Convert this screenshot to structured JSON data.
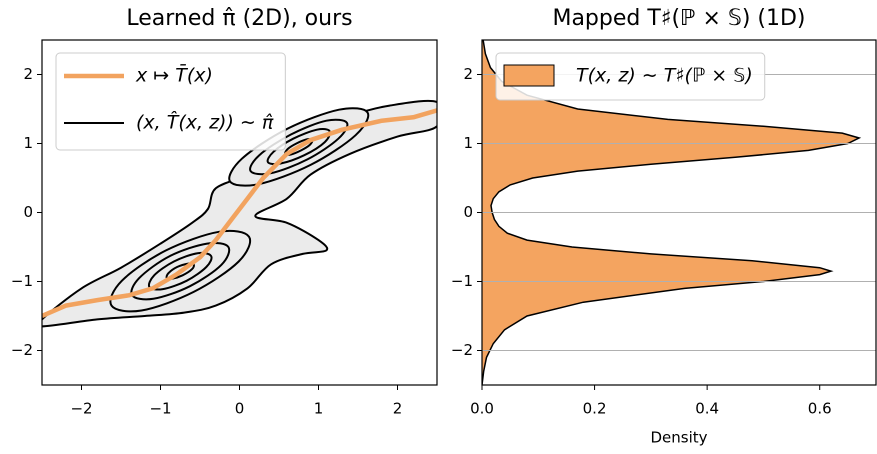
{
  "chart_data": [
    {
      "type": "contour",
      "title": "Learned π̂ (2D), ours",
      "xlim": [
        -2.5,
        2.5
      ],
      "ylim": [
        -2.5,
        2.5
      ],
      "xticks": [
        {
          "value": -2,
          "label": "−2"
        },
        {
          "value": -1,
          "label": "−1"
        },
        0,
        1,
        2
      ],
      "yticks": [
        {
          "value": -2,
          "label": "−2"
        },
        {
          "value": -1,
          "label": "−1"
        },
        0,
        1,
        2
      ],
      "grid": false,
      "legend": "upper left",
      "series": [
        {
          "name": "x ↦ T̄(x)",
          "color": "#f2a35f",
          "x": [
            -2.5,
            -2.2,
            -1.8,
            -1.4,
            -1.1,
            -0.8,
            -0.5,
            -0.3,
            -0.1,
            0.1,
            0.3,
            0.6,
            0.9,
            1.3,
            1.8,
            2.2,
            2.5
          ],
          "y": [
            -1.5,
            -1.35,
            -1.27,
            -1.2,
            -1.1,
            -0.9,
            -0.65,
            -0.4,
            -0.1,
            0.2,
            0.5,
            0.85,
            1.05,
            1.2,
            1.33,
            1.38,
            1.48
          ]
        },
        {
          "name": "(x, T̂(x, z)) ∼ π̂",
          "color": "#000000",
          "fill": "#ebebeb",
          "levels": [
            {
              "x": [
                -2.5,
                -2.0,
                -1.5,
                -1.0,
                -0.6,
                -0.4,
                -0.3,
                0.1,
                0.4,
                0.9,
                1.4,
                1.9,
                2.5,
                2.5,
                2.0,
                1.4,
                0.9,
                0.6,
                0.2,
                0.6,
                1.0,
                1.1,
                0.8,
                0.4,
                0.1,
                -0.3,
                -0.7,
                -1.2,
                -1.8,
                -2.5
              ],
              "y": [
                -1.55,
                -1.1,
                -0.8,
                -0.45,
                -0.15,
                0.05,
                0.35,
                0.55,
                0.8,
                1.15,
                1.4,
                1.55,
                1.6,
                1.25,
                1.1,
                0.85,
                0.55,
                0.2,
                -0.05,
                -0.15,
                -0.4,
                -0.55,
                -0.6,
                -0.75,
                -1.1,
                -1.35,
                -1.45,
                -1.5,
                -1.55,
                -1.65
              ]
            },
            {
              "x": [
                0.12,
                -0.26,
                -0.93,
                -1.49,
                -1.62,
                -1.24,
                -0.58,
                -0.01
              ],
              "y": [
                -0.35,
                -0.28,
                -0.55,
                -0.99,
                -1.35,
                -1.42,
                -1.15,
                -0.71
              ]
            },
            {
              "x": [
                -0.14,
                -0.41,
                -0.88,
                -1.27,
                -1.36,
                -1.09,
                -0.63,
                -0.23
              ],
              "y": [
                -0.5,
                -0.45,
                -0.63,
                -0.95,
                -1.2,
                -1.25,
                -1.07,
                -0.76
              ]
            },
            {
              "x": [
                -0.36,
                -0.53,
                -0.83,
                -1.08,
                -1.14,
                -0.97,
                -0.67,
                -0.42
              ],
              "y": [
                -0.63,
                -0.59,
                -0.71,
                -0.91,
                -1.08,
                -1.11,
                -0.99,
                -0.79
              ]
            },
            {
              "x": [
                -0.58,
                -0.65,
                -0.79,
                -0.9,
                -0.92,
                -0.85,
                -0.72,
                -0.6
              ],
              "y": [
                -0.75,
                -0.74,
                -0.79,
                -0.88,
                -0.95,
                -0.96,
                -0.91,
                -0.82
              ]
            },
            {
              "x": [
                1.62,
                1.26,
                0.6,
                0.03,
                -0.12,
                0.24,
                0.9,
                1.47
              ],
              "y": [
                1.45,
                1.49,
                1.21,
                0.78,
                0.45,
                0.41,
                0.69,
                1.12
              ]
            },
            {
              "x": [
                1.36,
                1.1,
                0.65,
                0.25,
                0.14,
                0.4,
                0.86,
                1.25
              ],
              "y": [
                1.3,
                1.33,
                1.13,
                0.83,
                0.6,
                0.57,
                0.77,
                1.07
              ]
            },
            {
              "x": [
                1.14,
                0.98,
                0.68,
                0.43,
                0.36,
                0.52,
                0.82,
                1.08
              ],
              "y": [
                1.18,
                1.2,
                1.07,
                0.88,
                0.73,
                0.71,
                0.83,
                1.02
              ]
            },
            {
              "x": [
                0.92,
                0.85,
                0.72,
                0.61,
                0.58,
                0.65,
                0.78,
                0.89
              ],
              "y": [
                1.05,
                1.06,
                1.0,
                0.92,
                0.85,
                0.84,
                0.9,
                0.98
              ]
            }
          ]
        }
      ]
    },
    {
      "type": "density",
      "title": "Mapped T♯(ℙ × 𝕊) (1D)",
      "xlabel": "Density",
      "xlim": [
        0,
        0.7
      ],
      "ylim": [
        -2.5,
        2.5
      ],
      "xticks": [
        {
          "value": 0,
          "label": "0.0"
        },
        {
          "value": 0.2,
          "label": "0.2"
        },
        {
          "value": 0.4,
          "label": "0.4"
        },
        {
          "value": 0.6,
          "label": "0.6"
        }
      ],
      "yticks": [
        {
          "value": -2,
          "label": "−2"
        },
        {
          "value": -1,
          "label": "−1"
        },
        0,
        1,
        2
      ],
      "grid": true,
      "legend": "upper left",
      "series": [
        {
          "name": "T(x, z) ∼ T♯(ℙ × 𝕊)",
          "color": "#f4a460",
          "y": [
            -2.5,
            -2.3,
            -2.1,
            -1.9,
            -1.7,
            -1.5,
            -1.3,
            -1.1,
            -1.0,
            -0.9,
            -0.85,
            -0.8,
            -0.7,
            -0.6,
            -0.5,
            -0.4,
            -0.3,
            -0.2,
            -0.1,
            0.0,
            0.1,
            0.2,
            0.3,
            0.4,
            0.5,
            0.6,
            0.7,
            0.8,
            0.9,
            1.0,
            1.08,
            1.15,
            1.25,
            1.35,
            1.5,
            1.7,
            1.9,
            2.1,
            2.3,
            2.5
          ],
          "values": [
            0.0,
            0.003,
            0.008,
            0.02,
            0.04,
            0.08,
            0.18,
            0.36,
            0.5,
            0.6,
            0.62,
            0.6,
            0.48,
            0.3,
            0.16,
            0.08,
            0.045,
            0.03,
            0.022,
            0.018,
            0.016,
            0.02,
            0.03,
            0.05,
            0.09,
            0.17,
            0.3,
            0.45,
            0.58,
            0.65,
            0.67,
            0.64,
            0.5,
            0.33,
            0.17,
            0.08,
            0.035,
            0.015,
            0.006,
            0.002
          ]
        }
      ]
    }
  ]
}
